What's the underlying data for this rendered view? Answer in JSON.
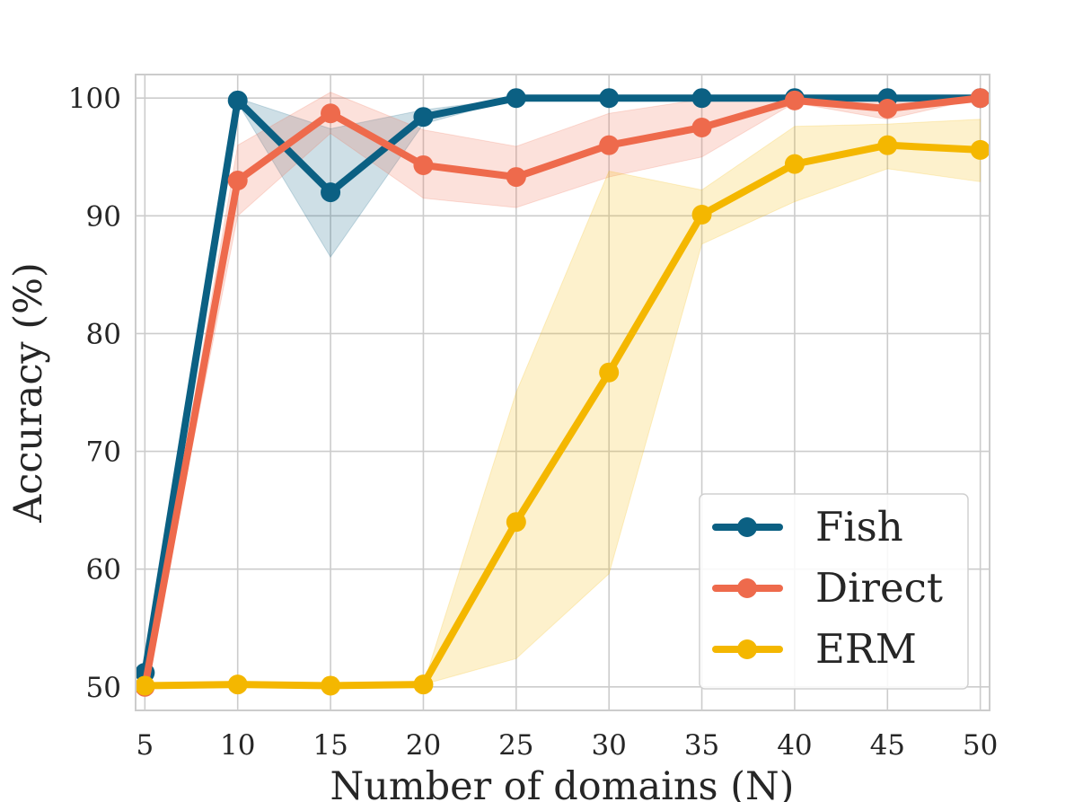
{
  "chart_data": {
    "type": "line",
    "xlabel": "Number of domains (N)",
    "ylabel": "Accuracy (%)",
    "xlim": [
      4.5,
      50.5
    ],
    "ylim": [
      48,
      102
    ],
    "x_ticks": [
      5,
      10,
      15,
      20,
      25,
      30,
      35,
      40,
      45,
      50
    ],
    "y_ticks": [
      50,
      60,
      70,
      80,
      90,
      100
    ],
    "grid": true,
    "legend_position": "bottom-right",
    "x": [
      5,
      10,
      15,
      20,
      25,
      30,
      35,
      40,
      45,
      50
    ],
    "series": [
      {
        "name": "Fish",
        "color": "#0b6083",
        "values": [
          51.2,
          99.8,
          92.0,
          98.4,
          100,
          100,
          100,
          100,
          100,
          100
        ],
        "band_lower": [
          51.2,
          99.6,
          86.5,
          97.8,
          100,
          100,
          100,
          100,
          100,
          100
        ],
        "band_upper": [
          51.2,
          100,
          97.4,
          99.0,
          100,
          100,
          100,
          100,
          100,
          100
        ]
      },
      {
        "name": "Direct",
        "color": "#ee6a4c",
        "values": [
          50.0,
          93.0,
          98.7,
          94.3,
          93.3,
          96.0,
          97.5,
          99.8,
          99.1,
          100
        ],
        "band_lower": [
          50.0,
          90.0,
          97.0,
          91.5,
          90.7,
          93.3,
          95.0,
          99.6,
          98.2,
          100
        ],
        "band_upper": [
          50.0,
          96.0,
          100.5,
          97.3,
          95.9,
          98.7,
          99.9,
          100,
          100,
          100
        ]
      },
      {
        "name": "ERM",
        "color": "#f4b700",
        "values": [
          50.1,
          50.2,
          50.1,
          50.2,
          64.0,
          76.7,
          90.1,
          94.4,
          96.0,
          95.6
        ],
        "band_lower": [
          50.1,
          50.2,
          50.1,
          50.2,
          52.4,
          59.6,
          87.6,
          91.2,
          94.0,
          92.9
        ],
        "band_upper": [
          50.1,
          50.2,
          50.1,
          50.2,
          75.0,
          93.8,
          92.2,
          97.6,
          97.8,
          98.2
        ]
      }
    ]
  }
}
